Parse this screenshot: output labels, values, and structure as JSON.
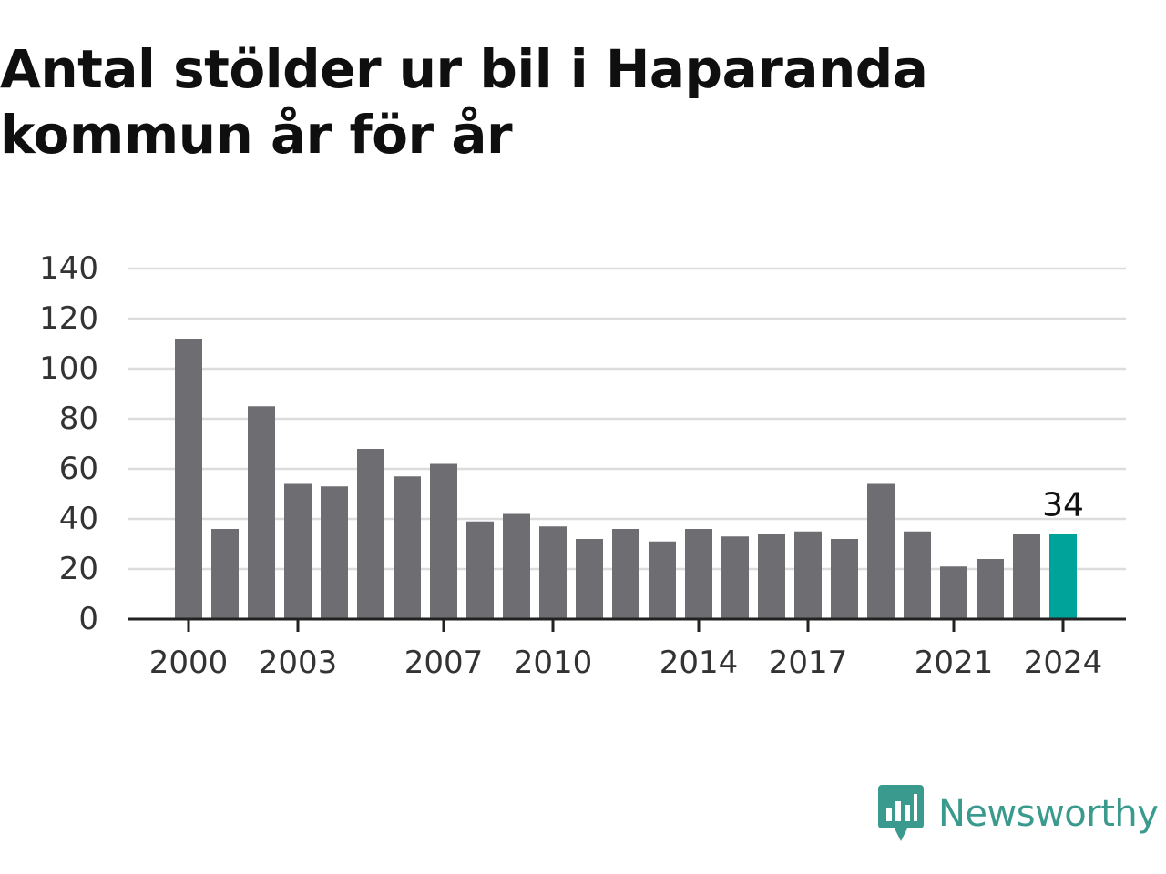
{
  "title": "Antal stölder ur bil i Haparanda kommun år för år",
  "chart_data": {
    "type": "bar",
    "categories": [
      "2000",
      "2001",
      "2002",
      "2003",
      "2004",
      "2005",
      "2006",
      "2007",
      "2008",
      "2009",
      "2010",
      "2011",
      "2012",
      "2013",
      "2014",
      "2015",
      "2016",
      "2017",
      "2018",
      "2019",
      "2020",
      "2021",
      "2022",
      "2023",
      "2024"
    ],
    "values": [
      112,
      36,
      85,
      54,
      53,
      68,
      57,
      62,
      39,
      42,
      37,
      32,
      36,
      31,
      36,
      33,
      34,
      35,
      32,
      54,
      35,
      21,
      24,
      34,
      34
    ],
    "xticks": [
      "2000",
      "2003",
      "2007",
      "2010",
      "2014",
      "2017",
      "2021",
      "2024"
    ],
    "yticks": [
      0,
      20,
      40,
      60,
      80,
      100,
      120,
      140
    ],
    "ylim": [
      0,
      140
    ],
    "highlight": {
      "category": "2024",
      "label": "34"
    },
    "grid": true,
    "colors": {
      "bar": "#6e6d72",
      "highlight": "#00a39a",
      "grid": "#dcdcdc",
      "axis": "#222222"
    }
  },
  "brand": {
    "name": "Newsworthy",
    "icon": "newsworthy-logo-icon",
    "color": "#3a9a8e"
  }
}
